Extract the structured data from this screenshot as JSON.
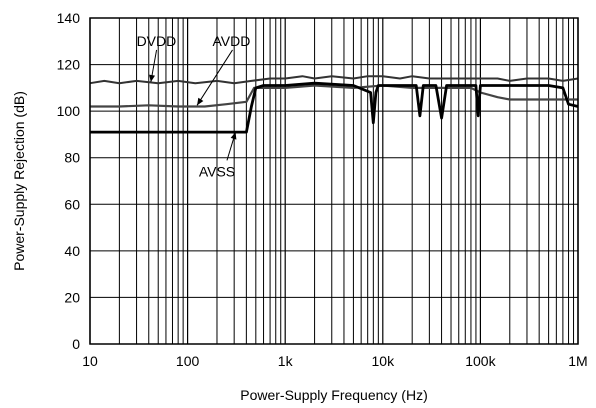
{
  "chart_data": {
    "type": "line",
    "xlabel": "Power-Supply Frequency (Hz)",
    "ylabel": "Power-Supply Rejection (dB)",
    "xscale": "log",
    "xlim": [
      10,
      1000000
    ],
    "ylim": [
      0,
      140
    ],
    "grid": true,
    "x_ticks": [
      {
        "value": 10,
        "label": "10"
      },
      {
        "value": 100,
        "label": "100"
      },
      {
        "value": 1000,
        "label": "1k"
      },
      {
        "value": 10000,
        "label": "10k"
      },
      {
        "value": 100000,
        "label": "100k"
      },
      {
        "value": 1000000,
        "label": "1M"
      }
    ],
    "y_ticks": [
      {
        "value": 0,
        "label": "0"
      },
      {
        "value": 20,
        "label": "20"
      },
      {
        "value": 40,
        "label": "40"
      },
      {
        "value": 60,
        "label": "60"
      },
      {
        "value": 80,
        "label": "80"
      },
      {
        "value": 100,
        "label": "100"
      },
      {
        "value": 120,
        "label": "120"
      },
      {
        "value": 140,
        "label": "140"
      }
    ],
    "series": [
      {
        "name": "DVDD",
        "color": "#333333",
        "points": [
          [
            10,
            112
          ],
          [
            14,
            113
          ],
          [
            20,
            112
          ],
          [
            30,
            113
          ],
          [
            50,
            112
          ],
          [
            80,
            113
          ],
          [
            120,
            112
          ],
          [
            200,
            113
          ],
          [
            300,
            112
          ],
          [
            450,
            113
          ],
          [
            700,
            114
          ],
          [
            1000,
            114
          ],
          [
            1500,
            115
          ],
          [
            2000,
            114
          ],
          [
            3000,
            115
          ],
          [
            5000,
            114
          ],
          [
            7000,
            115
          ],
          [
            10000,
            115
          ],
          [
            15000,
            114
          ],
          [
            20000,
            115
          ],
          [
            30000,
            114
          ],
          [
            50000,
            114
          ],
          [
            70000,
            114
          ],
          [
            100000,
            114
          ],
          [
            150000,
            114
          ],
          [
            200000,
            113
          ],
          [
            300000,
            114
          ],
          [
            500000,
            114
          ],
          [
            700000,
            113
          ],
          [
            1000000,
            114
          ]
        ]
      },
      {
        "name": "AVDD",
        "color": "#444444",
        "points": [
          [
            10,
            102
          ],
          [
            20,
            102
          ],
          [
            40,
            102.5
          ],
          [
            80,
            102
          ],
          [
            150,
            102
          ],
          [
            250,
            103
          ],
          [
            400,
            104
          ],
          [
            480,
            110
          ],
          [
            600,
            110
          ],
          [
            1000,
            110
          ],
          [
            2000,
            111
          ],
          [
            5000,
            110
          ],
          [
            10000,
            111
          ],
          [
            20000,
            110
          ],
          [
            50000,
            110
          ],
          [
            80000,
            110
          ],
          [
            100000,
            108
          ],
          [
            150000,
            106
          ],
          [
            200000,
            105
          ],
          [
            300000,
            105
          ],
          [
            500000,
            105
          ],
          [
            700000,
            105
          ],
          [
            1000000,
            105
          ]
        ]
      },
      {
        "name": "AVSS",
        "color": "#000000",
        "points": [
          [
            10,
            91
          ],
          [
            30,
            91
          ],
          [
            100,
            91
          ],
          [
            200,
            91
          ],
          [
            400,
            91
          ],
          [
            450,
            102
          ],
          [
            500,
            110
          ],
          [
            600,
            111
          ],
          [
            1000,
            111
          ],
          [
            2000,
            112
          ],
          [
            5000,
            111
          ],
          [
            7500,
            108
          ],
          [
            8000,
            95
          ],
          [
            8500,
            108
          ],
          [
            9000,
            111
          ],
          [
            15000,
            111
          ],
          [
            22000,
            111
          ],
          [
            24000,
            98
          ],
          [
            26000,
            111
          ],
          [
            35000,
            111
          ],
          [
            40000,
            97
          ],
          [
            45000,
            111
          ],
          [
            70000,
            111
          ],
          [
            90000,
            111
          ],
          [
            95000,
            98
          ],
          [
            100000,
            111
          ],
          [
            200000,
            111
          ],
          [
            500000,
            111
          ],
          [
            700000,
            110
          ],
          [
            800000,
            103
          ],
          [
            1000000,
            102
          ]
        ]
      }
    ],
    "annotations": [
      {
        "text": "DVDD"
      },
      {
        "text": "AVDD"
      },
      {
        "text": "AVSS"
      }
    ]
  }
}
